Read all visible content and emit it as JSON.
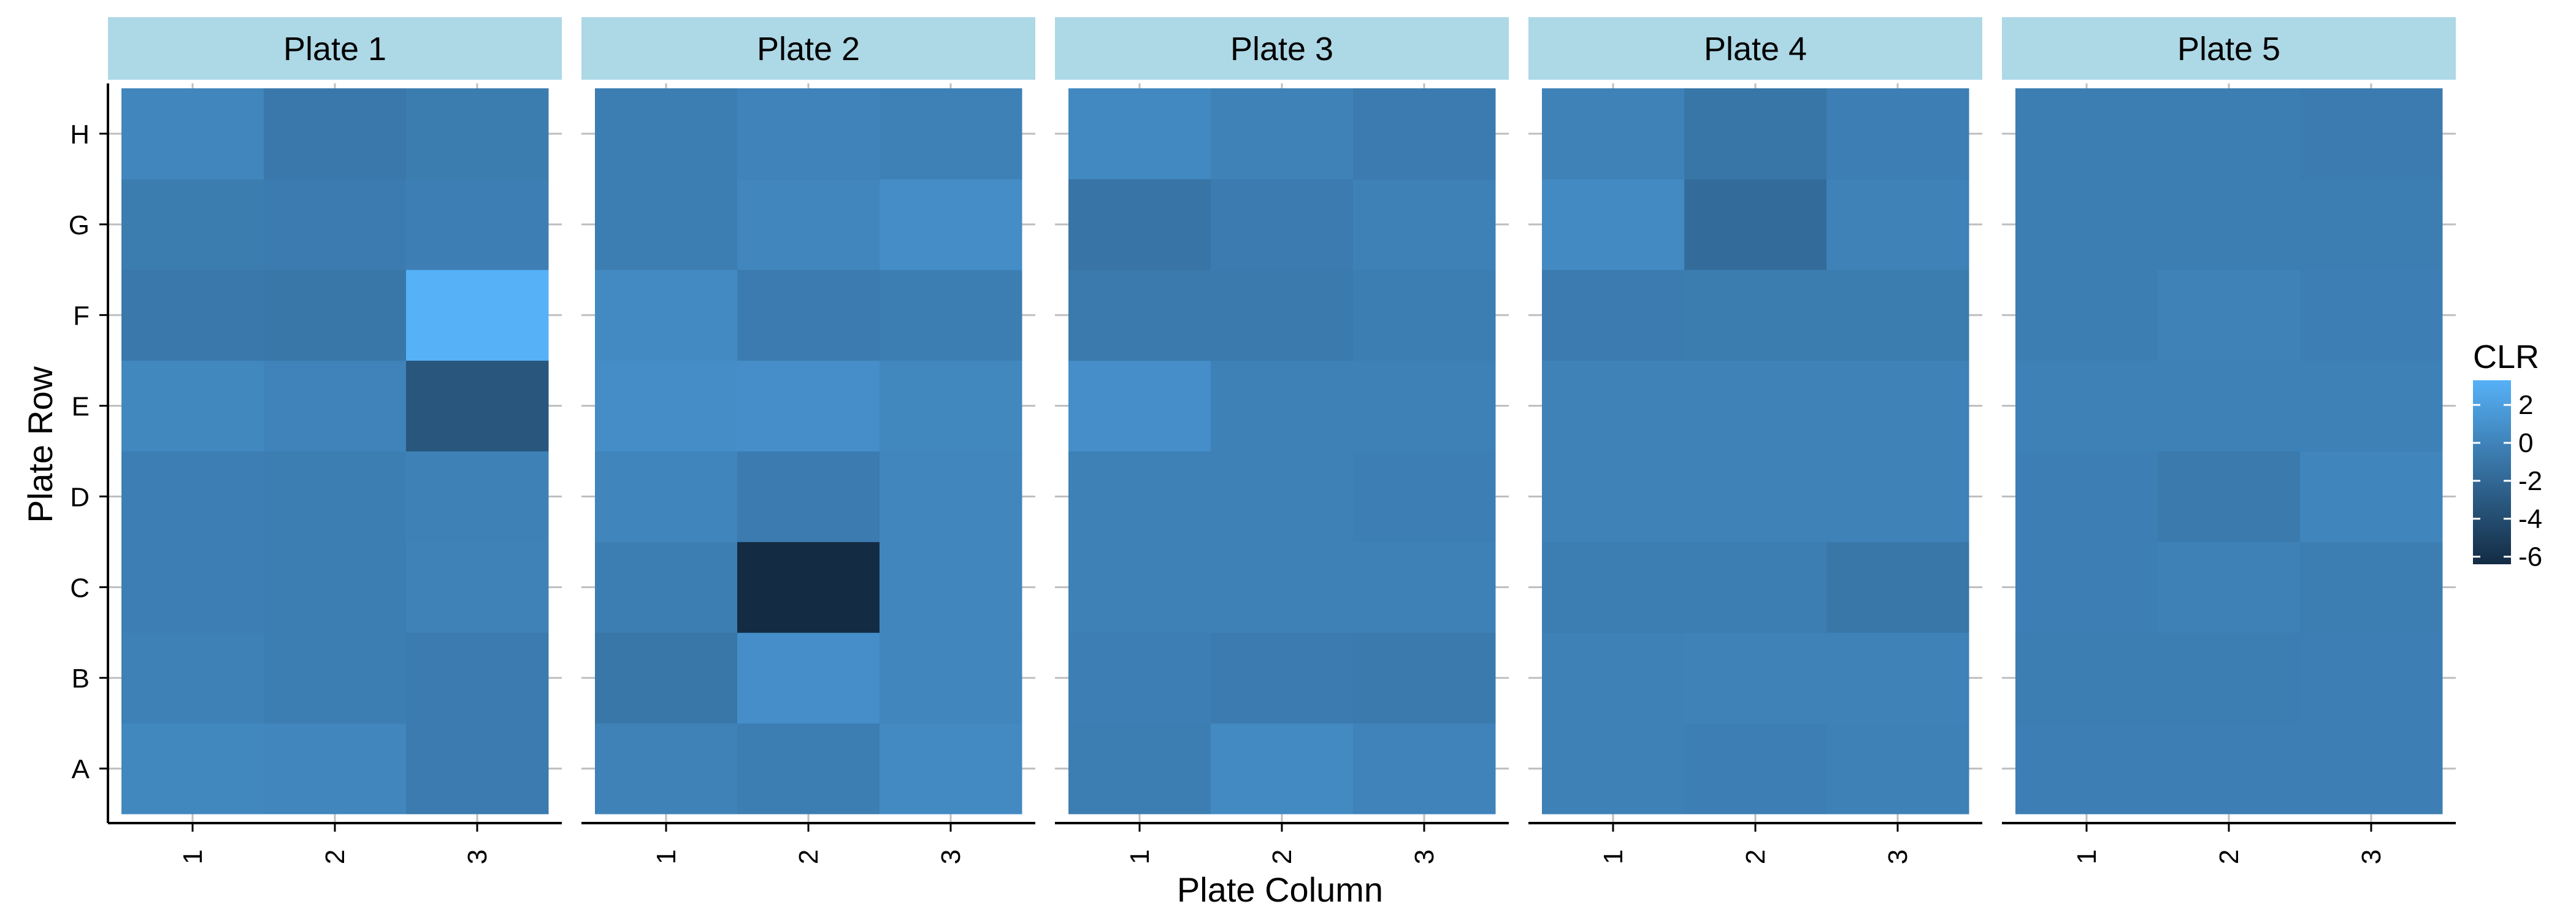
{
  "chart_data": {
    "type": "heatmap",
    "xlabel": "Plate Column",
    "ylabel": "Plate Row",
    "facets": [
      {
        "label": "Plate 1"
      },
      {
        "label": "Plate 2"
      },
      {
        "label": "Plate 3"
      },
      {
        "label": "Plate 4"
      },
      {
        "label": "Plate 5"
      }
    ],
    "columns": [
      "1",
      "2",
      "3"
    ],
    "rows": [
      "A",
      "B",
      "C",
      "D",
      "E",
      "F",
      "G",
      "H"
    ],
    "cells": [
      [
        [
          0.3,
          0.2,
          -0.6
        ],
        [
          -0.2,
          -0.4,
          -0.6
        ],
        [
          -0.3,
          -0.4,
          -0.1
        ],
        [
          -0.3,
          -0.4,
          -0.2
        ],
        [
          0.3,
          0.0,
          -3.3
        ],
        [
          -0.8,
          -0.9,
          3.3
        ],
        [
          -0.5,
          -0.6,
          -0.3
        ],
        [
          0.2,
          -0.8,
          -0.5
        ]
      ],
      [
        [
          -0.1,
          -0.4,
          0.5
        ],
        [
          -0.9,
          0.8,
          0.2
        ],
        [
          -0.4,
          -6.4,
          0.2
        ],
        [
          0.1,
          -0.6,
          0.2
        ],
        [
          0.7,
          0.8,
          0.3
        ],
        [
          0.5,
          -0.6,
          -0.4
        ],
        [
          -0.4,
          0.2,
          0.7
        ],
        [
          -0.4,
          0.0,
          -0.2
        ]
      ],
      [
        [
          -0.4,
          0.5,
          0.0
        ],
        [
          -0.3,
          -0.6,
          -0.7
        ],
        [
          -0.2,
          -0.2,
          -0.2
        ],
        [
          -0.2,
          -0.2,
          -0.3
        ],
        [
          0.8,
          -0.2,
          -0.2
        ],
        [
          -0.7,
          -0.7,
          -0.4
        ],
        [
          -1.1,
          -0.6,
          -0.2
        ],
        [
          0.4,
          -0.1,
          -0.6
        ]
      ],
      [
        [
          -0.2,
          -0.3,
          -0.2
        ],
        [
          -0.2,
          -0.1,
          -0.1
        ],
        [
          -0.4,
          -0.4,
          -0.9
        ],
        [
          -0.1,
          -0.1,
          -0.1
        ],
        [
          -0.1,
          -0.1,
          -0.1
        ],
        [
          -0.6,
          -0.5,
          -0.5
        ],
        [
          0.5,
          -1.7,
          -0.1
        ],
        [
          -0.1,
          -1.0,
          -0.3
        ]
      ],
      [
        [
          -0.3,
          -0.3,
          -0.3
        ],
        [
          -0.4,
          -0.4,
          -0.3
        ],
        [
          -0.3,
          -0.2,
          -0.4
        ],
        [
          -0.3,
          -0.7,
          0.1
        ],
        [
          -0.2,
          -0.2,
          -0.2
        ],
        [
          -0.4,
          -0.1,
          -0.3
        ],
        [
          -0.4,
          -0.4,
          -0.4
        ],
        [
          -0.4,
          -0.4,
          -0.6
        ]
      ]
    ],
    "legend": {
      "title": "CLR",
      "ticks": [
        2,
        0,
        -2,
        -4,
        -6
      ],
      "range": [
        -6.4,
        3.3
      ],
      "low_color": "#132B43",
      "high_color": "#56B1F7",
      "placement": "right"
    },
    "colors": {
      "strip_fill": "#ADD8E6",
      "gridline": "#BEBEBE",
      "panel_background": "#FFFFFF",
      "axis_line": "#000000"
    },
    "grid": true
  }
}
